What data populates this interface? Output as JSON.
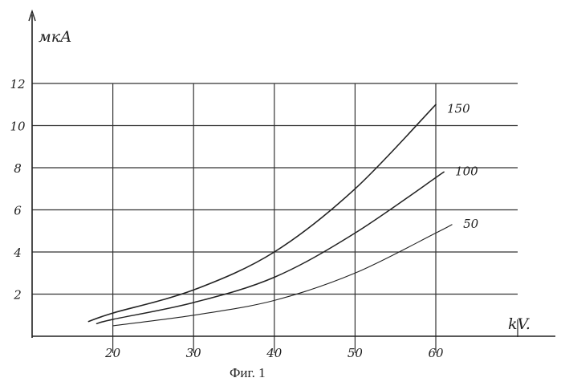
{
  "chart_data": {
    "type": "line",
    "title": "",
    "xlabel": "kV.",
    "ylabel": "мкА",
    "caption": "Фиг. 1",
    "xlim": [
      10,
      70
    ],
    "ylim": [
      0,
      12
    ],
    "x_ticks": [
      "20",
      "30",
      "40",
      "50",
      "60"
    ],
    "y_ticks": [
      "2",
      "4",
      "6",
      "8",
      "10",
      "12"
    ],
    "grid": true,
    "series": [
      {
        "name": "150",
        "points": [
          [
            17,
            0.7
          ],
          [
            20,
            1.1
          ],
          [
            30,
            2.2
          ],
          [
            40,
            4.0
          ],
          [
            50,
            7.0
          ],
          [
            60,
            11.0
          ]
        ]
      },
      {
        "name": "100",
        "points": [
          [
            18,
            0.6
          ],
          [
            20,
            0.8
          ],
          [
            30,
            1.6
          ],
          [
            40,
            2.8
          ],
          [
            50,
            4.9
          ],
          [
            61,
            7.8
          ]
        ]
      },
      {
        "name": "50",
        "points": [
          [
            20,
            0.5
          ],
          [
            30,
            1.0
          ],
          [
            40,
            1.7
          ],
          [
            50,
            3.0
          ],
          [
            60,
            4.9
          ],
          [
            62,
            5.3
          ]
        ]
      }
    ]
  }
}
